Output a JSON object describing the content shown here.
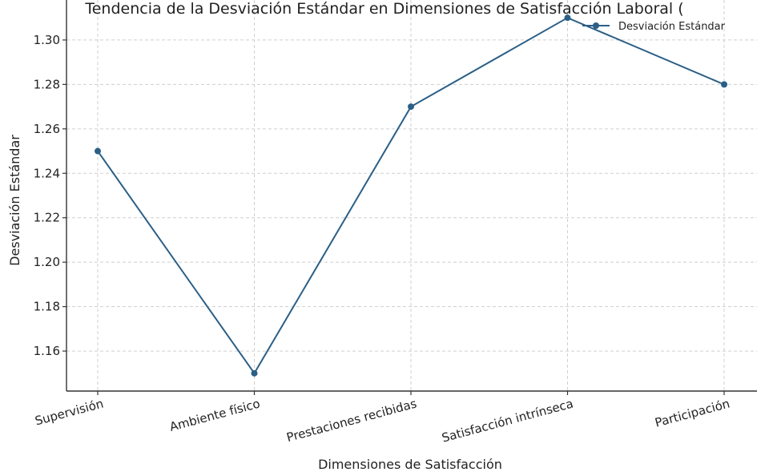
{
  "chart_data": {
    "type": "line",
    "title": "Tendencia de la Desviación Estándar en Dimensiones de Satisfacción Laboral (",
    "xlabel": "Dimensiones de Satisfacción",
    "ylabel": "Desviación Estándar",
    "categories": [
      "Supervisión",
      "Ambiente físico",
      "Prestaciones recibidas",
      "Satisfacción intrínseca",
      "Participación"
    ],
    "series": [
      {
        "name": "Desviación Estándar",
        "values": [
          1.25,
          1.15,
          1.27,
          1.31,
          1.28
        ],
        "color": "#2b5f86"
      }
    ],
    "ylim": [
      1.142,
      1.318
    ],
    "yticks": [
      1.16,
      1.18,
      1.2,
      1.22,
      1.24,
      1.26,
      1.28,
      1.3
    ],
    "ytick_labels": [
      "1.16",
      "1.18",
      "1.20",
      "1.22",
      "1.24",
      "1.26",
      "1.28",
      "1.30"
    ],
    "grid": true,
    "legend_position": "top-right"
  }
}
